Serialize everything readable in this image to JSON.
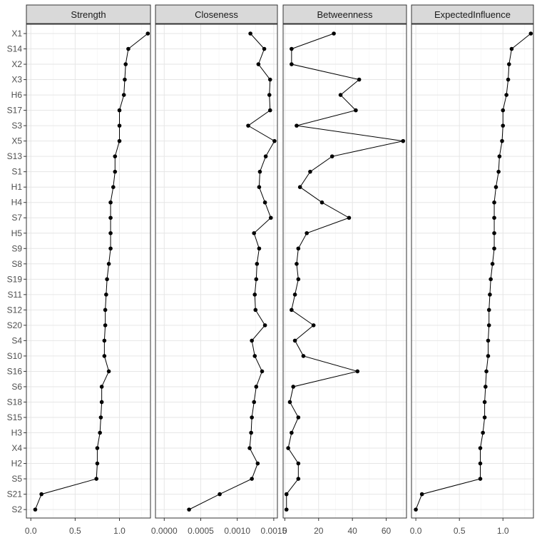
{
  "chart_data": {
    "type": "line",
    "nodes": [
      "X1",
      "S14",
      "X2",
      "X3",
      "H6",
      "S17",
      "S3",
      "X5",
      "S13",
      "S1",
      "H1",
      "H4",
      "S7",
      "H5",
      "S9",
      "S8",
      "S19",
      "S11",
      "S12",
      "S20",
      "S4",
      "S10",
      "S16",
      "S6",
      "S18",
      "S15",
      "H3",
      "X4",
      "H2",
      "S5",
      "S21",
      "S2"
    ],
    "panels": [
      {
        "title": "Strength",
        "xlim": [
          -0.05,
          1.35
        ],
        "ticks": [
          0.0,
          0.5,
          1.0
        ],
        "tick_labels": [
          "0.0",
          "0.5",
          "1.0"
        ],
        "values": [
          1.32,
          1.1,
          1.07,
          1.06,
          1.05,
          1.0,
          1.0,
          1.0,
          0.95,
          0.95,
          0.93,
          0.9,
          0.9,
          0.9,
          0.9,
          0.88,
          0.86,
          0.85,
          0.84,
          0.84,
          0.83,
          0.83,
          0.88,
          0.8,
          0.8,
          0.79,
          0.78,
          0.75,
          0.75,
          0.74,
          0.12,
          0.05
        ]
      },
      {
        "title": "Closeness",
        "xlim": [
          -0.00012,
          0.00155
        ],
        "ticks": [
          0.0,
          0.0005,
          0.001,
          0.0015
        ],
        "tick_labels": [
          "0.0000",
          "0.0005",
          "0.0010",
          "0.0015"
        ],
        "values": [
          0.00118,
          0.00137,
          0.00129,
          0.00145,
          0.00144,
          0.00145,
          0.00115,
          0.00151,
          0.00139,
          0.00131,
          0.0013,
          0.00138,
          0.00146,
          0.00123,
          0.0013,
          0.00127,
          0.00126,
          0.00124,
          0.00125,
          0.00138,
          0.0012,
          0.00124,
          0.00134,
          0.00126,
          0.00123,
          0.0012,
          0.00119,
          0.00117,
          0.00128,
          0.0012,
          0.00076,
          0.00034
        ]
      },
      {
        "title": "Betweenness",
        "xlim": [
          -1,
          72
        ],
        "ticks": [
          0,
          20,
          40,
          60
        ],
        "tick_labels": [
          "0",
          "20",
          "40",
          "60"
        ],
        "values": [
          29,
          4,
          4,
          44,
          33,
          42,
          7,
          70,
          28,
          15,
          9,
          22,
          38,
          13,
          8,
          7,
          8,
          6,
          4,
          17,
          6,
          11,
          43,
          5,
          3,
          8,
          4,
          2,
          8,
          8,
          1,
          1
        ]
      },
      {
        "title": "ExpectedInfluence",
        "xlim": [
          -0.05,
          1.35
        ],
        "ticks": [
          0.0,
          0.5,
          1.0
        ],
        "tick_labels": [
          "0.0",
          "0.5",
          "1.0"
        ],
        "values": [
          1.32,
          1.1,
          1.07,
          1.06,
          1.04,
          1.0,
          1.0,
          0.99,
          0.96,
          0.95,
          0.92,
          0.9,
          0.9,
          0.9,
          0.9,
          0.88,
          0.86,
          0.85,
          0.84,
          0.84,
          0.83,
          0.83,
          0.81,
          0.8,
          0.79,
          0.79,
          0.77,
          0.74,
          0.74,
          0.74,
          0.07,
          0.0
        ]
      }
    ],
    "grid": true,
    "legend": "none"
  }
}
